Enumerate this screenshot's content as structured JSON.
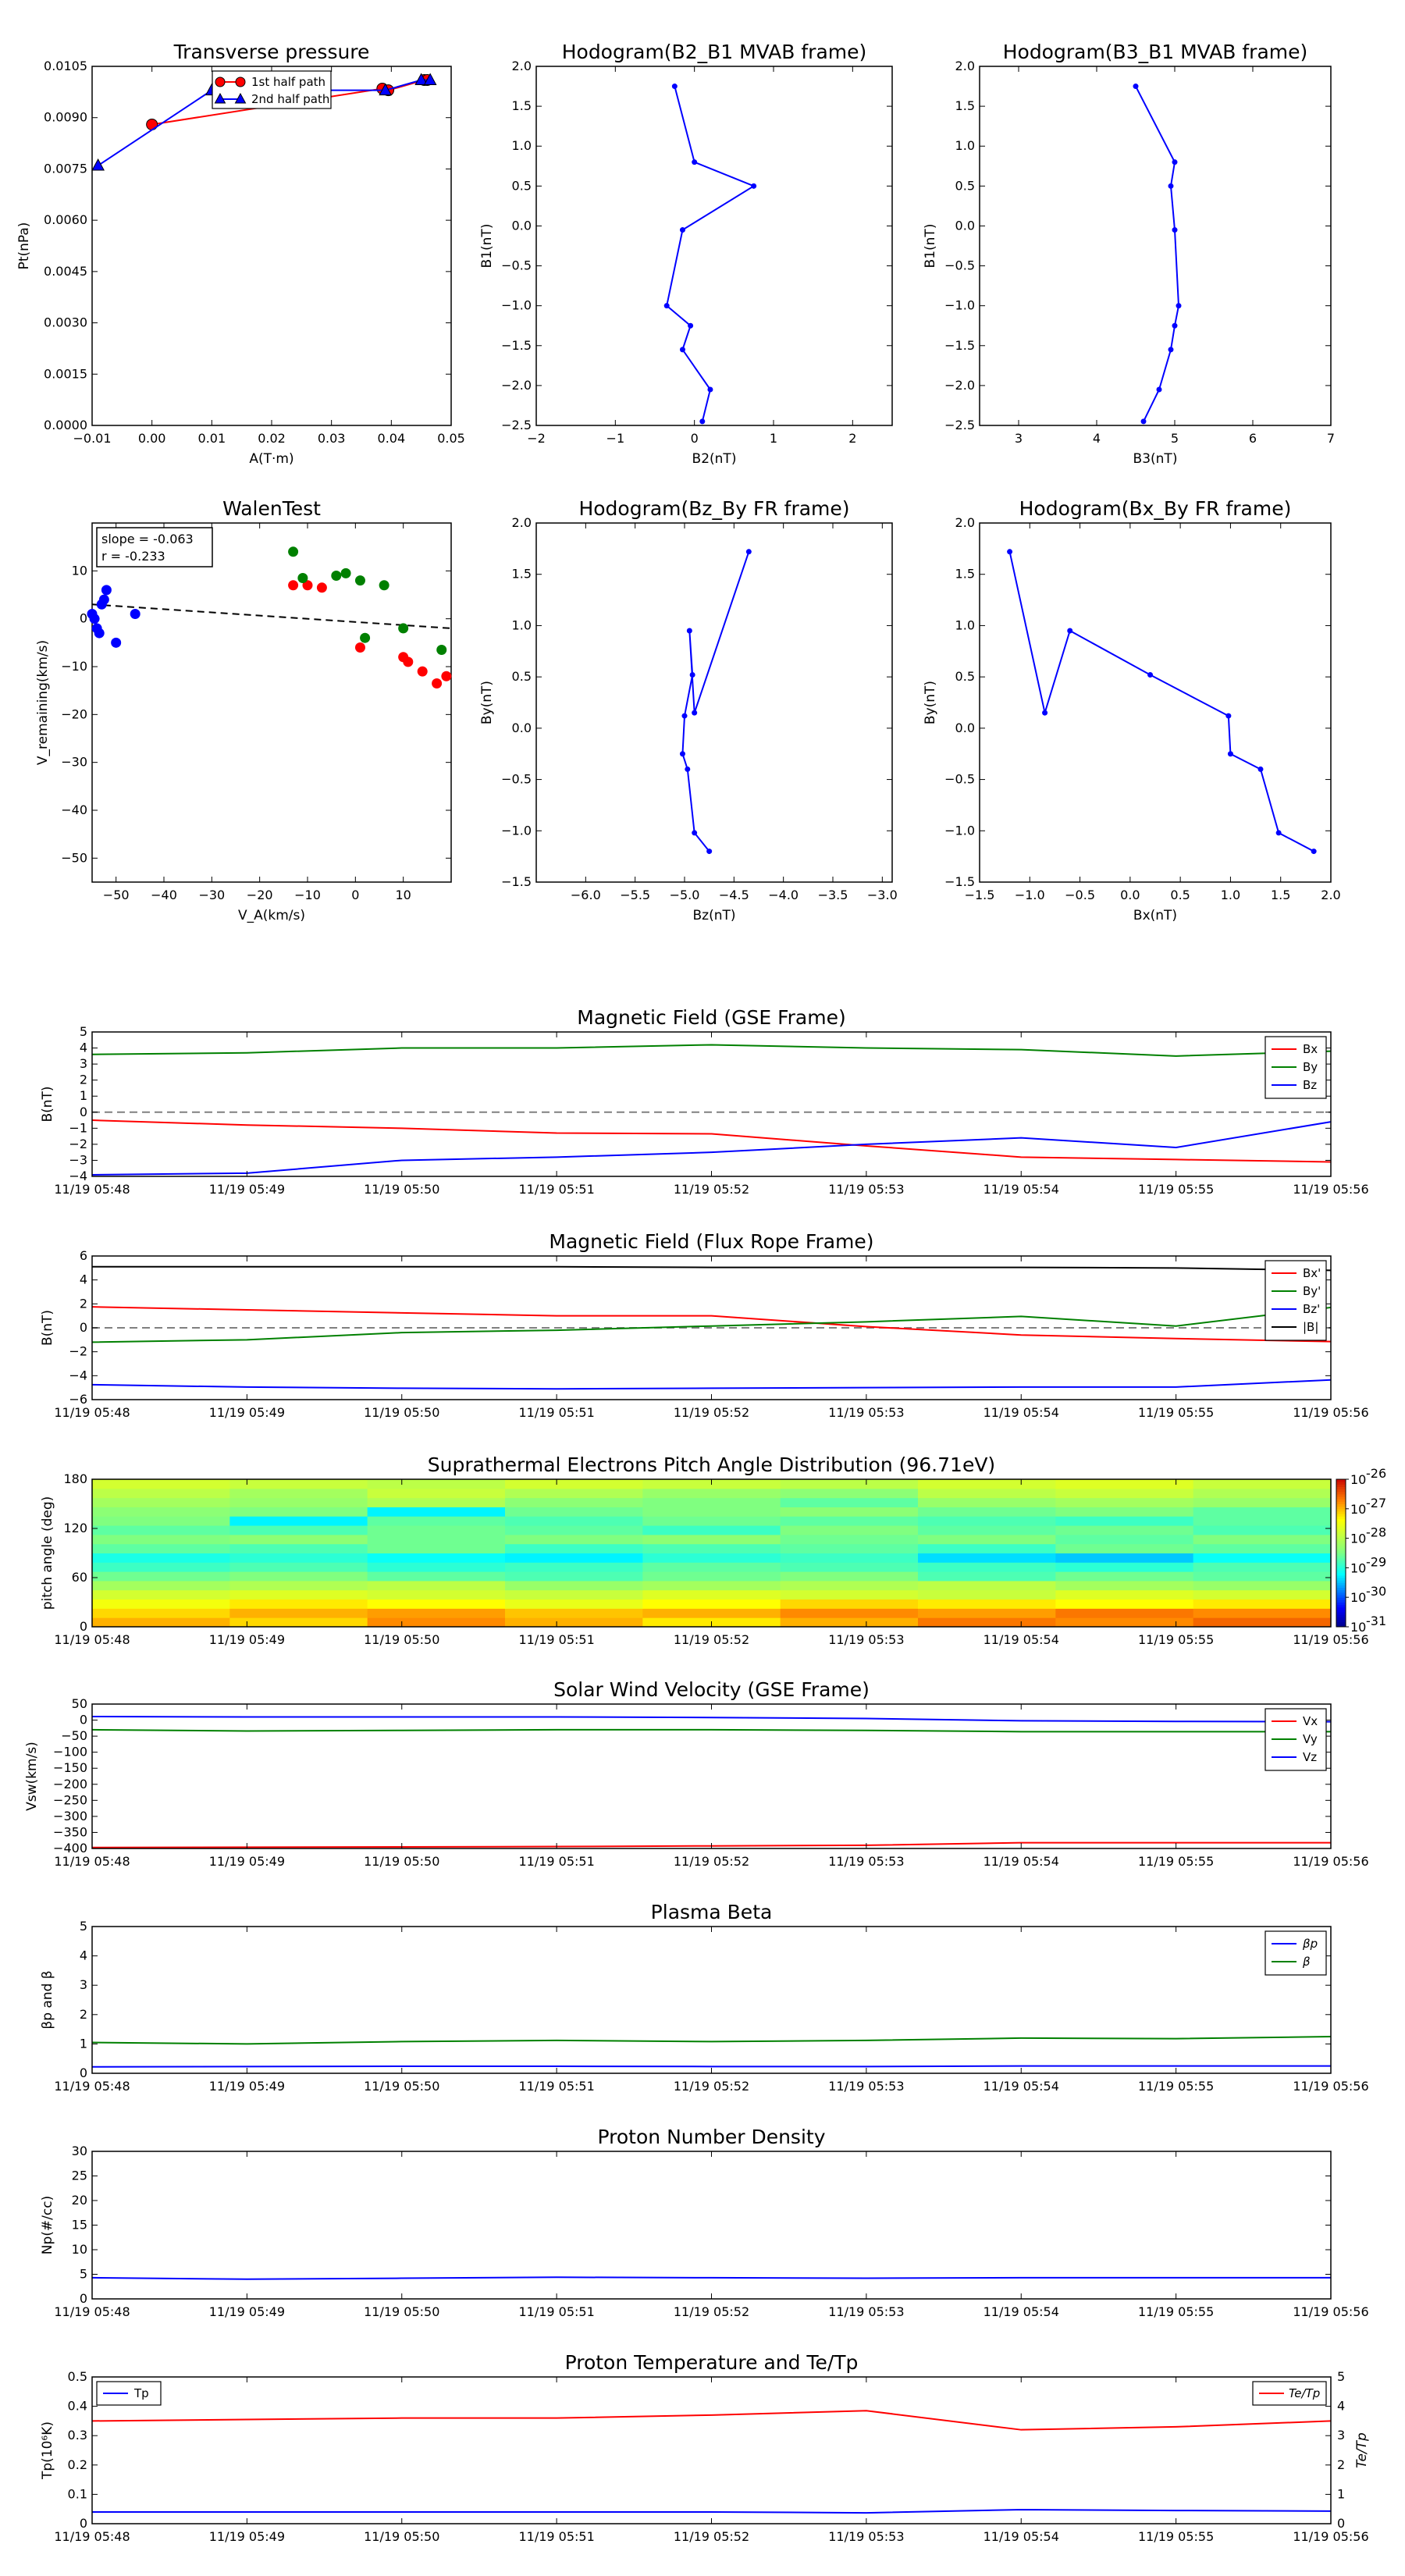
{
  "colors": {
    "red": "#ff0000",
    "green": "#008000",
    "blue": "#0000ff",
    "black": "#000000",
    "gray": "#808080"
  },
  "time_ticks": [
    "11/19 05:48",
    "11/19 05:49",
    "11/19 05:50",
    "11/19 05:51",
    "11/19 05:52",
    "11/19 05:53",
    "11/19 05:54",
    "11/19 05:55",
    "11/19 05:56"
  ],
  "chart_data": [
    {
      "id": "pt",
      "type": "line",
      "title": "Transverse pressure",
      "xlabel": "A(T·m)",
      "ylabel": "Pt(nPa)",
      "xlim": [
        -0.01,
        0.05
      ],
      "ylim": [
        0,
        0.0105
      ],
      "xticks": [
        "−0.01",
        "0.00",
        "0.01",
        "0.02",
        "0.03",
        "0.04",
        "0.05"
      ],
      "yticks": [
        "0.0000",
        "0.0015",
        "0.0030",
        "0.0045",
        "0.0060",
        "0.0075",
        "0.0090",
        "0.0105"
      ],
      "legend_position": "top-center",
      "series": [
        {
          "name": "1st half path",
          "color": "red",
          "marker": "circle",
          "x": [
            0.0,
            0.0385,
            0.0395,
            0.0455,
            0.046
          ],
          "y": [
            0.0088,
            0.00985,
            0.0098,
            0.0101,
            0.0101
          ]
        },
        {
          "name": "2nd half path",
          "color": "blue",
          "marker": "triangle",
          "x": [
            -0.009,
            0.01,
            0.039,
            0.045,
            0.0465
          ],
          "y": [
            0.0076,
            0.0098,
            0.0098,
            0.0101,
            0.0101
          ]
        }
      ]
    },
    {
      "id": "h_b2b1",
      "type": "line",
      "title": "Hodogram(B2_B1 MVAB frame)",
      "xlabel": "B2(nT)",
      "ylabel": "B1(nT)",
      "xlim": [
        -2,
        2.5
      ],
      "ylim": [
        -2.5,
        2.0
      ],
      "xticks": [
        "−2",
        "−1",
        "0",
        "1",
        "2"
      ],
      "yticks": [
        "−2.5",
        "−2.0",
        "−1.5",
        "−1.0",
        "−0.5",
        "0.0",
        "0.5",
        "1.0",
        "1.5",
        "2.0"
      ],
      "series": [
        {
          "color": "blue",
          "x": [
            -0.25,
            0.0,
            0.75,
            -0.15,
            -0.35,
            -0.05,
            -0.15,
            0.2,
            0.1
          ],
          "y": [
            1.75,
            0.8,
            0.5,
            -0.05,
            -1.0,
            -1.25,
            -1.55,
            -2.05,
            -2.45
          ]
        }
      ]
    },
    {
      "id": "h_b3b1",
      "type": "line",
      "title": "Hodogram(B3_B1 MVAB frame)",
      "xlabel": "B3(nT)",
      "ylabel": "B1(nT)",
      "xlim": [
        2.5,
        7
      ],
      "ylim": [
        -2.5,
        2.0
      ],
      "xticks": [
        "3",
        "4",
        "5",
        "6",
        "7"
      ],
      "yticks": [
        "−2.5",
        "−2.0",
        "−1.5",
        "−1.0",
        "−0.5",
        "0.0",
        "0.5",
        "1.0",
        "1.5",
        "2.0"
      ],
      "series": [
        {
          "color": "blue",
          "x": [
            4.5,
            5.0,
            4.95,
            5.0,
            5.05,
            5.0,
            4.95,
            4.8,
            4.6
          ],
          "y": [
            1.75,
            0.8,
            0.5,
            -0.05,
            -1.0,
            -1.25,
            -1.55,
            -2.05,
            -2.45
          ]
        }
      ]
    },
    {
      "id": "walen",
      "type": "scatter",
      "title": "WalenTest",
      "xlabel": "V_A(km/s)",
      "ylabel": "V_remaining(km/s)",
      "xlim": [
        -55,
        20
      ],
      "ylim": [
        -55,
        20
      ],
      "xticks": [
        "−50",
        "−40",
        "−30",
        "−20",
        "−10",
        "0",
        "10"
      ],
      "yticks": [
        "−50",
        "−40",
        "−30",
        "−20",
        "−10",
        "0",
        "10"
      ],
      "annotation": [
        "slope = -0.063",
        "r = -0.233"
      ],
      "series": [
        {
          "color": "blue",
          "x": [
            -55,
            -54.5,
            -54,
            -53.5,
            -53,
            -52.5,
            -52,
            -50,
            -46
          ],
          "y": [
            1,
            0,
            -2,
            -3,
            3,
            4,
            6,
            -5,
            1
          ]
        },
        {
          "color": "red",
          "x": [
            -13,
            -10,
            -7,
            1,
            10,
            11,
            14,
            17,
            19
          ],
          "y": [
            7,
            7,
            6.5,
            -6,
            -8,
            -9,
            -11,
            -13.5,
            -12
          ]
        },
        {
          "color": "green",
          "x": [
            -13,
            -11,
            -4,
            -2,
            1,
            2,
            6,
            10,
            18
          ],
          "y": [
            14,
            8.5,
            9,
            9.5,
            8,
            -4,
            7,
            -2,
            -6.5
          ]
        }
      ],
      "fit_line": {
        "x": [
          -55,
          20
        ],
        "y": [
          3.0,
          -2.0
        ]
      }
    },
    {
      "id": "h_bzby",
      "type": "line",
      "title": "Hodogram(Bz_By FR frame)",
      "xlabel": "Bz(nT)",
      "ylabel": "By(nT)",
      "xlim": [
        -6.5,
        -2.9
      ],
      "ylim": [
        -1.5,
        2.0
      ],
      "xticks": [
        "−6.0",
        "−5.5",
        "−5.0",
        "−4.5",
        "−4.0",
        "−3.5",
        "−3.0"
      ],
      "yticks": [
        "−1.5",
        "−1.0",
        "−0.5",
        "0.0",
        "0.5",
        "1.0",
        "1.5",
        "2.0"
      ],
      "series": [
        {
          "color": "blue",
          "x": [
            -4.35,
            -4.9,
            -4.95,
            -4.92,
            -5.0,
            -5.02,
            -4.97,
            -4.9,
            -4.75
          ],
          "y": [
            1.72,
            0.15,
            0.95,
            0.52,
            0.12,
            -0.25,
            -0.4,
            -1.02,
            -1.2
          ]
        }
      ]
    },
    {
      "id": "h_bxby",
      "type": "line",
      "title": "Hodogram(Bx_By FR frame)",
      "xlabel": "Bx(nT)",
      "ylabel": "By(nT)",
      "xlim": [
        -1.5,
        2.0
      ],
      "ylim": [
        -1.5,
        2.0
      ],
      "xticks": [
        "−1.5",
        "−1.0",
        "−0.5",
        "0.0",
        "0.5",
        "1.0",
        "1.5",
        "2.0"
      ],
      "yticks": [
        "−1.5",
        "−1.0",
        "−0.5",
        "0.0",
        "0.5",
        "1.0",
        "1.5",
        "2.0"
      ],
      "series": [
        {
          "color": "blue",
          "x": [
            -1.2,
            -0.85,
            -0.6,
            0.2,
            0.98,
            1.0,
            1.3,
            1.48,
            1.83
          ],
          "y": [
            1.72,
            0.15,
            0.95,
            0.52,
            0.12,
            -0.25,
            -0.4,
            -1.02,
            -1.2
          ]
        }
      ]
    },
    {
      "id": "mag_gse",
      "type": "line",
      "title": "Magnetic Field (GSE Frame)",
      "ylabel": "B(nT)",
      "x_is_time": true,
      "ylim": [
        -4,
        5
      ],
      "yticks": [
        "−4",
        "−3",
        "−2",
        "−1",
        "0",
        "1",
        "2",
        "3",
        "4",
        "5"
      ],
      "legend_position": "top-right",
      "zero_line": true,
      "series": [
        {
          "name": "Bx",
          "color": "red",
          "values": [
            -0.5,
            -0.8,
            -1.0,
            -1.3,
            -1.35,
            -2.1,
            -2.8,
            -2.95,
            -3.1
          ]
        },
        {
          "name": "By",
          "color": "green",
          "values": [
            3.6,
            3.7,
            4.0,
            4.0,
            4.2,
            4.0,
            3.9,
            3.5,
            3.8
          ]
        },
        {
          "name": "Bz",
          "color": "blue",
          "values": [
            -3.9,
            -3.8,
            -3.0,
            -2.8,
            -2.5,
            -2.0,
            -1.6,
            -2.2,
            -0.6
          ]
        }
      ]
    },
    {
      "id": "mag_fr",
      "type": "line",
      "title": "Magnetic Field (Flux Rope Frame)",
      "ylabel": "B(nT)",
      "x_is_time": true,
      "ylim": [
        -6,
        6
      ],
      "yticks": [
        "−6",
        "−4",
        "−2",
        "0",
        "2",
        "4",
        "6"
      ],
      "legend_position": "top-right",
      "zero_line": true,
      "series": [
        {
          "name": "Bx'",
          "color": "red",
          "values": [
            1.75,
            1.5,
            1.25,
            1.0,
            1.0,
            0.1,
            -0.6,
            -0.9,
            -1.15
          ]
        },
        {
          "name": "By'",
          "color": "green",
          "values": [
            -1.2,
            -1.0,
            -0.4,
            -0.2,
            0.15,
            0.5,
            0.95,
            0.15,
            1.7
          ]
        },
        {
          "name": "Bz'",
          "color": "blue",
          "values": [
            -4.75,
            -4.95,
            -5.05,
            -5.1,
            -5.05,
            -5.0,
            -4.95,
            -4.95,
            -4.35
          ]
        },
        {
          "name": "|B|",
          "color": "black",
          "values": [
            5.1,
            5.1,
            5.1,
            5.1,
            5.05,
            5.05,
            5.05,
            5.0,
            4.8
          ]
        }
      ]
    },
    {
      "id": "pad",
      "type": "heatmap",
      "title": "Suprathermal Electrons Pitch Angle Distribution (96.71eV)",
      "ylabel": "pitch angle (deg)",
      "x_is_time": true,
      "ylim": [
        0,
        180
      ],
      "yticks": [
        "0",
        "60",
        "120",
        "180"
      ],
      "colorbar_ticks": [
        "-31",
        "-30",
        "-29",
        "-28",
        "-27",
        "-26"
      ],
      "rows": [
        [
          -27.0,
          -27.2,
          -26.8,
          -27.0,
          -27.3,
          -27.0,
          -26.7,
          -26.8,
          -26.6
        ],
        [
          -27.2,
          -27.0,
          -26.9,
          -27.1,
          -27.0,
          -26.8,
          -26.9,
          -26.7,
          -26.8
        ],
        [
          -27.5,
          -27.3,
          -27.4,
          -27.6,
          -27.4,
          -27.2,
          -27.3,
          -27.4,
          -27.3
        ],
        [
          -27.8,
          -27.7,
          -27.8,
          -27.9,
          -27.7,
          -27.8,
          -27.9,
          -27.7,
          -27.8
        ],
        [
          -28.2,
          -28.1,
          -28.0,
          -28.3,
          -28.2,
          -28.1,
          -28.0,
          -28.2,
          -28.3
        ],
        [
          -28.6,
          -28.5,
          -28.7,
          -28.8,
          -28.6,
          -28.5,
          -28.8,
          -28.6,
          -28.7
        ],
        [
          -28.9,
          -28.8,
          -29.0,
          -28.9,
          -28.7,
          -28.8,
          -28.9,
          -29.0,
          -28.8
        ],
        [
          -29.1,
          -29.0,
          -29.2,
          -29.3,
          -29.0,
          -28.9,
          -29.4,
          -29.5,
          -29.2
        ],
        [
          -28.7,
          -28.8,
          -28.6,
          -28.9,
          -28.8,
          -28.7,
          -28.9,
          -28.6,
          -28.7
        ],
        [
          -28.5,
          -28.4,
          -28.6,
          -28.5,
          -28.4,
          -28.6,
          -28.5,
          -28.7,
          -28.5
        ],
        [
          -28.7,
          -28.8,
          -28.6,
          -28.7,
          -28.9,
          -28.5,
          -28.7,
          -28.6,
          -28.8
        ],
        [
          -28.5,
          -29.3,
          -28.7,
          -28.8,
          -28.6,
          -28.7,
          -28.8,
          -28.9,
          -28.7
        ],
        [
          -28.4,
          -28.5,
          -29.3,
          -28.6,
          -28.5,
          -28.4,
          -28.6,
          -28.5,
          -28.7
        ],
        [
          -28.2,
          -28.3,
          -28.1,
          -28.4,
          -28.5,
          -28.7,
          -28.3,
          -28.2,
          -28.3
        ],
        [
          -28.0,
          -28.2,
          -27.9,
          -28.1,
          -28.3,
          -28.4,
          -28.0,
          -27.9,
          -28.1
        ],
        [
          -27.8,
          -27.9,
          -28.0,
          -27.8,
          -27.9,
          -28.0,
          -27.8,
          -27.7,
          -27.9
        ]
      ]
    },
    {
      "id": "vsw",
      "type": "line",
      "title": "Solar Wind Velocity (GSE Frame)",
      "ylabel": "Vsw(km/s)",
      "x_is_time": true,
      "ylim": [
        -400,
        50
      ],
      "yticks": [
        "−400",
        "−350",
        "−300",
        "−250",
        "−200",
        "−150",
        "−100",
        "−50",
        "0",
        "50"
      ],
      "legend_position": "top-right",
      "series": [
        {
          "name": "Vx",
          "color": "red",
          "values": [
            -397,
            -396,
            -395,
            -394,
            -392,
            -390,
            -382,
            -382,
            -382
          ]
        },
        {
          "name": "Vy",
          "color": "green",
          "values": [
            -30,
            -34,
            -32,
            -30,
            -30,
            -32,
            -36,
            -36,
            -36
          ]
        },
        {
          "name": "Vz",
          "color": "blue",
          "values": [
            11,
            10,
            10,
            10,
            8,
            5,
            -2,
            -4,
            -5
          ]
        }
      ]
    },
    {
      "id": "beta",
      "type": "line",
      "title": "Plasma Beta",
      "ylabel": "βp and β",
      "x_is_time": true,
      "ylim": [
        0,
        5
      ],
      "yticks": [
        "0",
        "1",
        "2",
        "3",
        "4",
        "5"
      ],
      "legend_position": "top-right",
      "series": [
        {
          "name": "βp",
          "color": "blue",
          "values": [
            0.22,
            0.23,
            0.24,
            0.24,
            0.23,
            0.23,
            0.25,
            0.25,
            0.25
          ]
        },
        {
          "name": "β",
          "color": "green",
          "values": [
            1.05,
            1.0,
            1.08,
            1.12,
            1.08,
            1.12,
            1.2,
            1.18,
            1.25
          ]
        }
      ]
    },
    {
      "id": "np",
      "type": "line",
      "title": "Proton Number Density",
      "ylabel": "Np(#/cc)",
      "x_is_time": true,
      "ylim": [
        0,
        30
      ],
      "yticks": [
        "0",
        "5",
        "10",
        "15",
        "20",
        "25",
        "30"
      ],
      "series": [
        {
          "color": "blue",
          "values": [
            4.3,
            4.0,
            4.2,
            4.4,
            4.3,
            4.2,
            4.3,
            4.3,
            4.3
          ]
        }
      ]
    },
    {
      "id": "tp",
      "type": "line",
      "title": "Proton Temperature and Te/Tp",
      "ylabel": "Tp(10⁶K)",
      "y2label": "Te/Tp",
      "x_is_time": true,
      "ylim": [
        0,
        0.5
      ],
      "y2lim": [
        0,
        5
      ],
      "yticks": [
        "0",
        "0.1",
        "0.2",
        "0.3",
        "0.4",
        "0.5"
      ],
      "y2ticks": [
        "0",
        "1",
        "2",
        "3",
        "4",
        "5"
      ],
      "series": [
        {
          "name": "Tp",
          "color": "blue",
          "axis": "left",
          "values": [
            0.04,
            0.04,
            0.04,
            0.04,
            0.04,
            0.037,
            0.048,
            0.045,
            0.043
          ]
        },
        {
          "name": "Te/Tp",
          "color": "red",
          "axis": "right",
          "values": [
            3.5,
            3.55,
            3.6,
            3.6,
            3.7,
            3.85,
            3.2,
            3.3,
            3.5
          ]
        }
      ]
    }
  ]
}
